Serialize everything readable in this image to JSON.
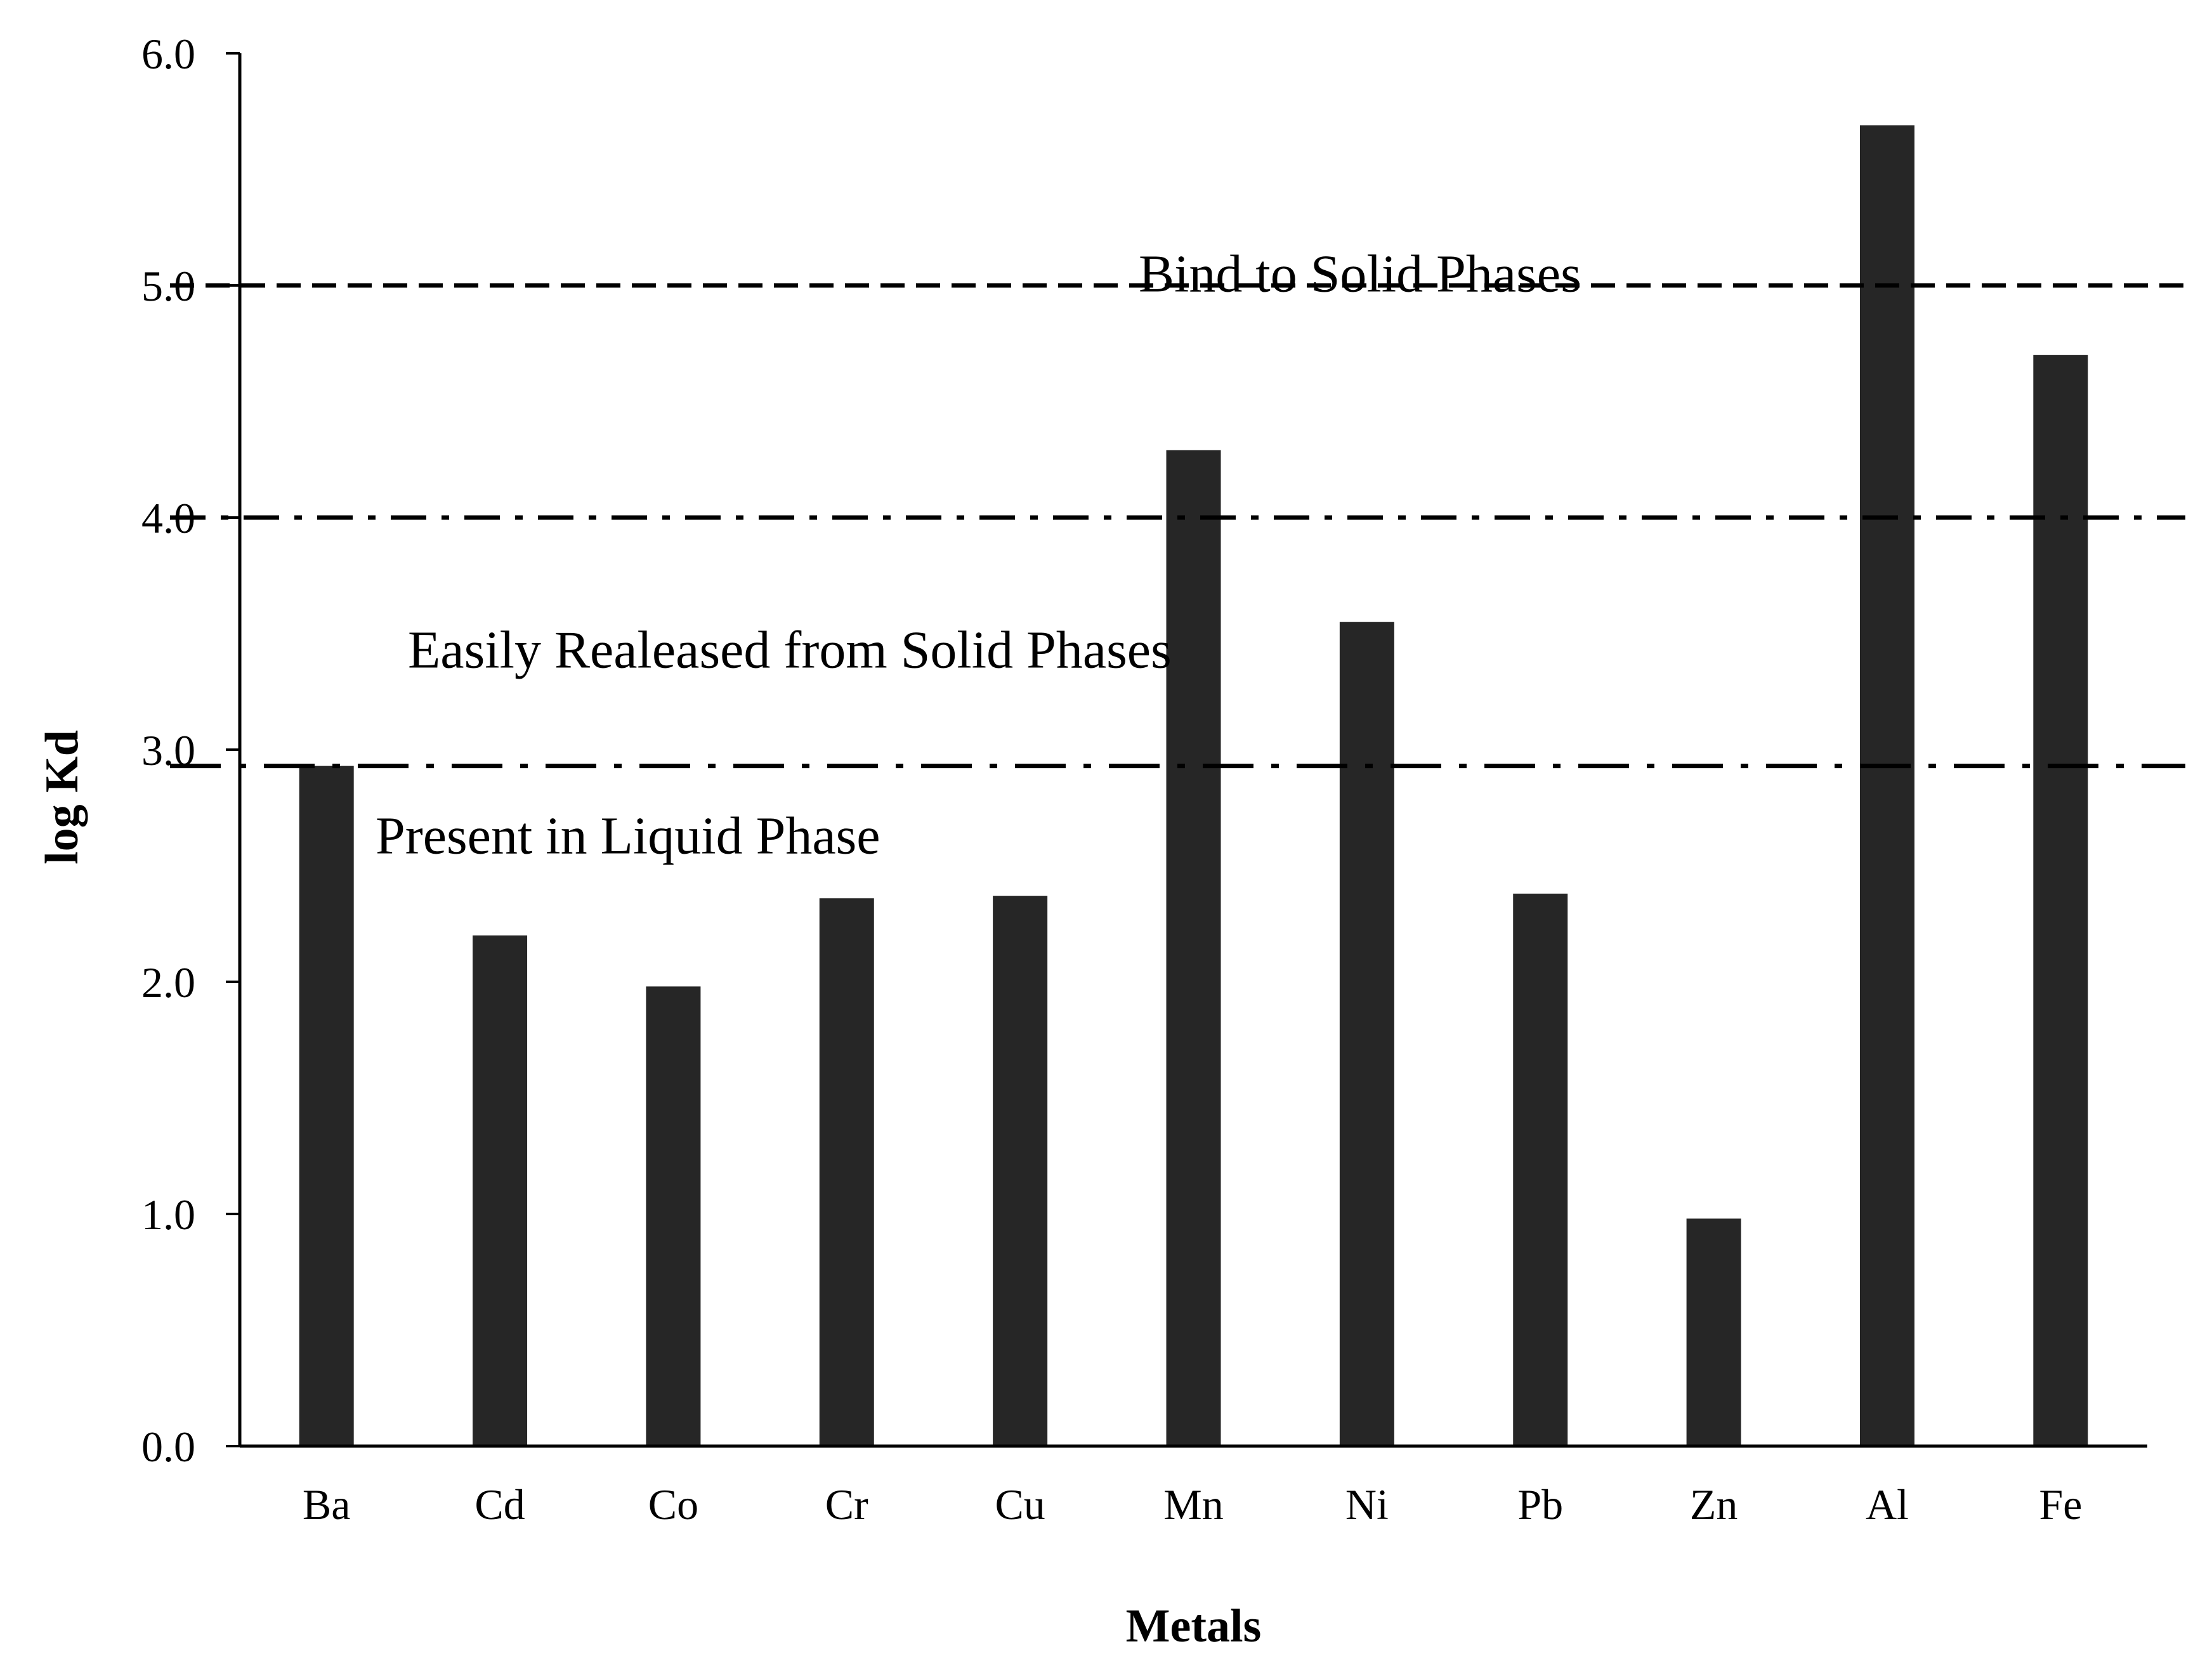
{
  "chart_data": {
    "type": "bar",
    "categories": [
      "Ba",
      "Cd",
      "Co",
      "Cr",
      "Cu",
      "Mn",
      "Ni",
      "Pb",
      "Zn",
      "Al",
      "Fe"
    ],
    "values": [
      2.93,
      2.2,
      1.98,
      2.36,
      2.37,
      4.29,
      3.55,
      2.38,
      0.98,
      5.69,
      4.7
    ],
    "xlabel": "Metals",
    "ylabel": "log Kd",
    "ylim": [
      0,
      6
    ],
    "yticks": [
      "0.0",
      "1.0",
      "2.0",
      "3.0",
      "4.0",
      "5.0",
      "6.0"
    ],
    "bar_color": "#262626",
    "grid": false,
    "reference_lines": [
      {
        "name": "bind-line",
        "y": 5.0,
        "style": "dashed"
      },
      {
        "name": "easily-line",
        "y": 4.0,
        "style": "dash-dot"
      },
      {
        "name": "liquid-line",
        "y": 2.93,
        "style": "long-dash-dot"
      }
    ],
    "annotations": [
      {
        "name": "annotation-bind",
        "text": "Bind to Solid Phases",
        "y": 5.05
      },
      {
        "name": "annotation-easily",
        "text": "Easily Realeased from Solid Phases",
        "y": 3.43
      },
      {
        "name": "annotation-liquid",
        "text": "Present in Liquid Phase",
        "y": 2.63
      }
    ]
  }
}
